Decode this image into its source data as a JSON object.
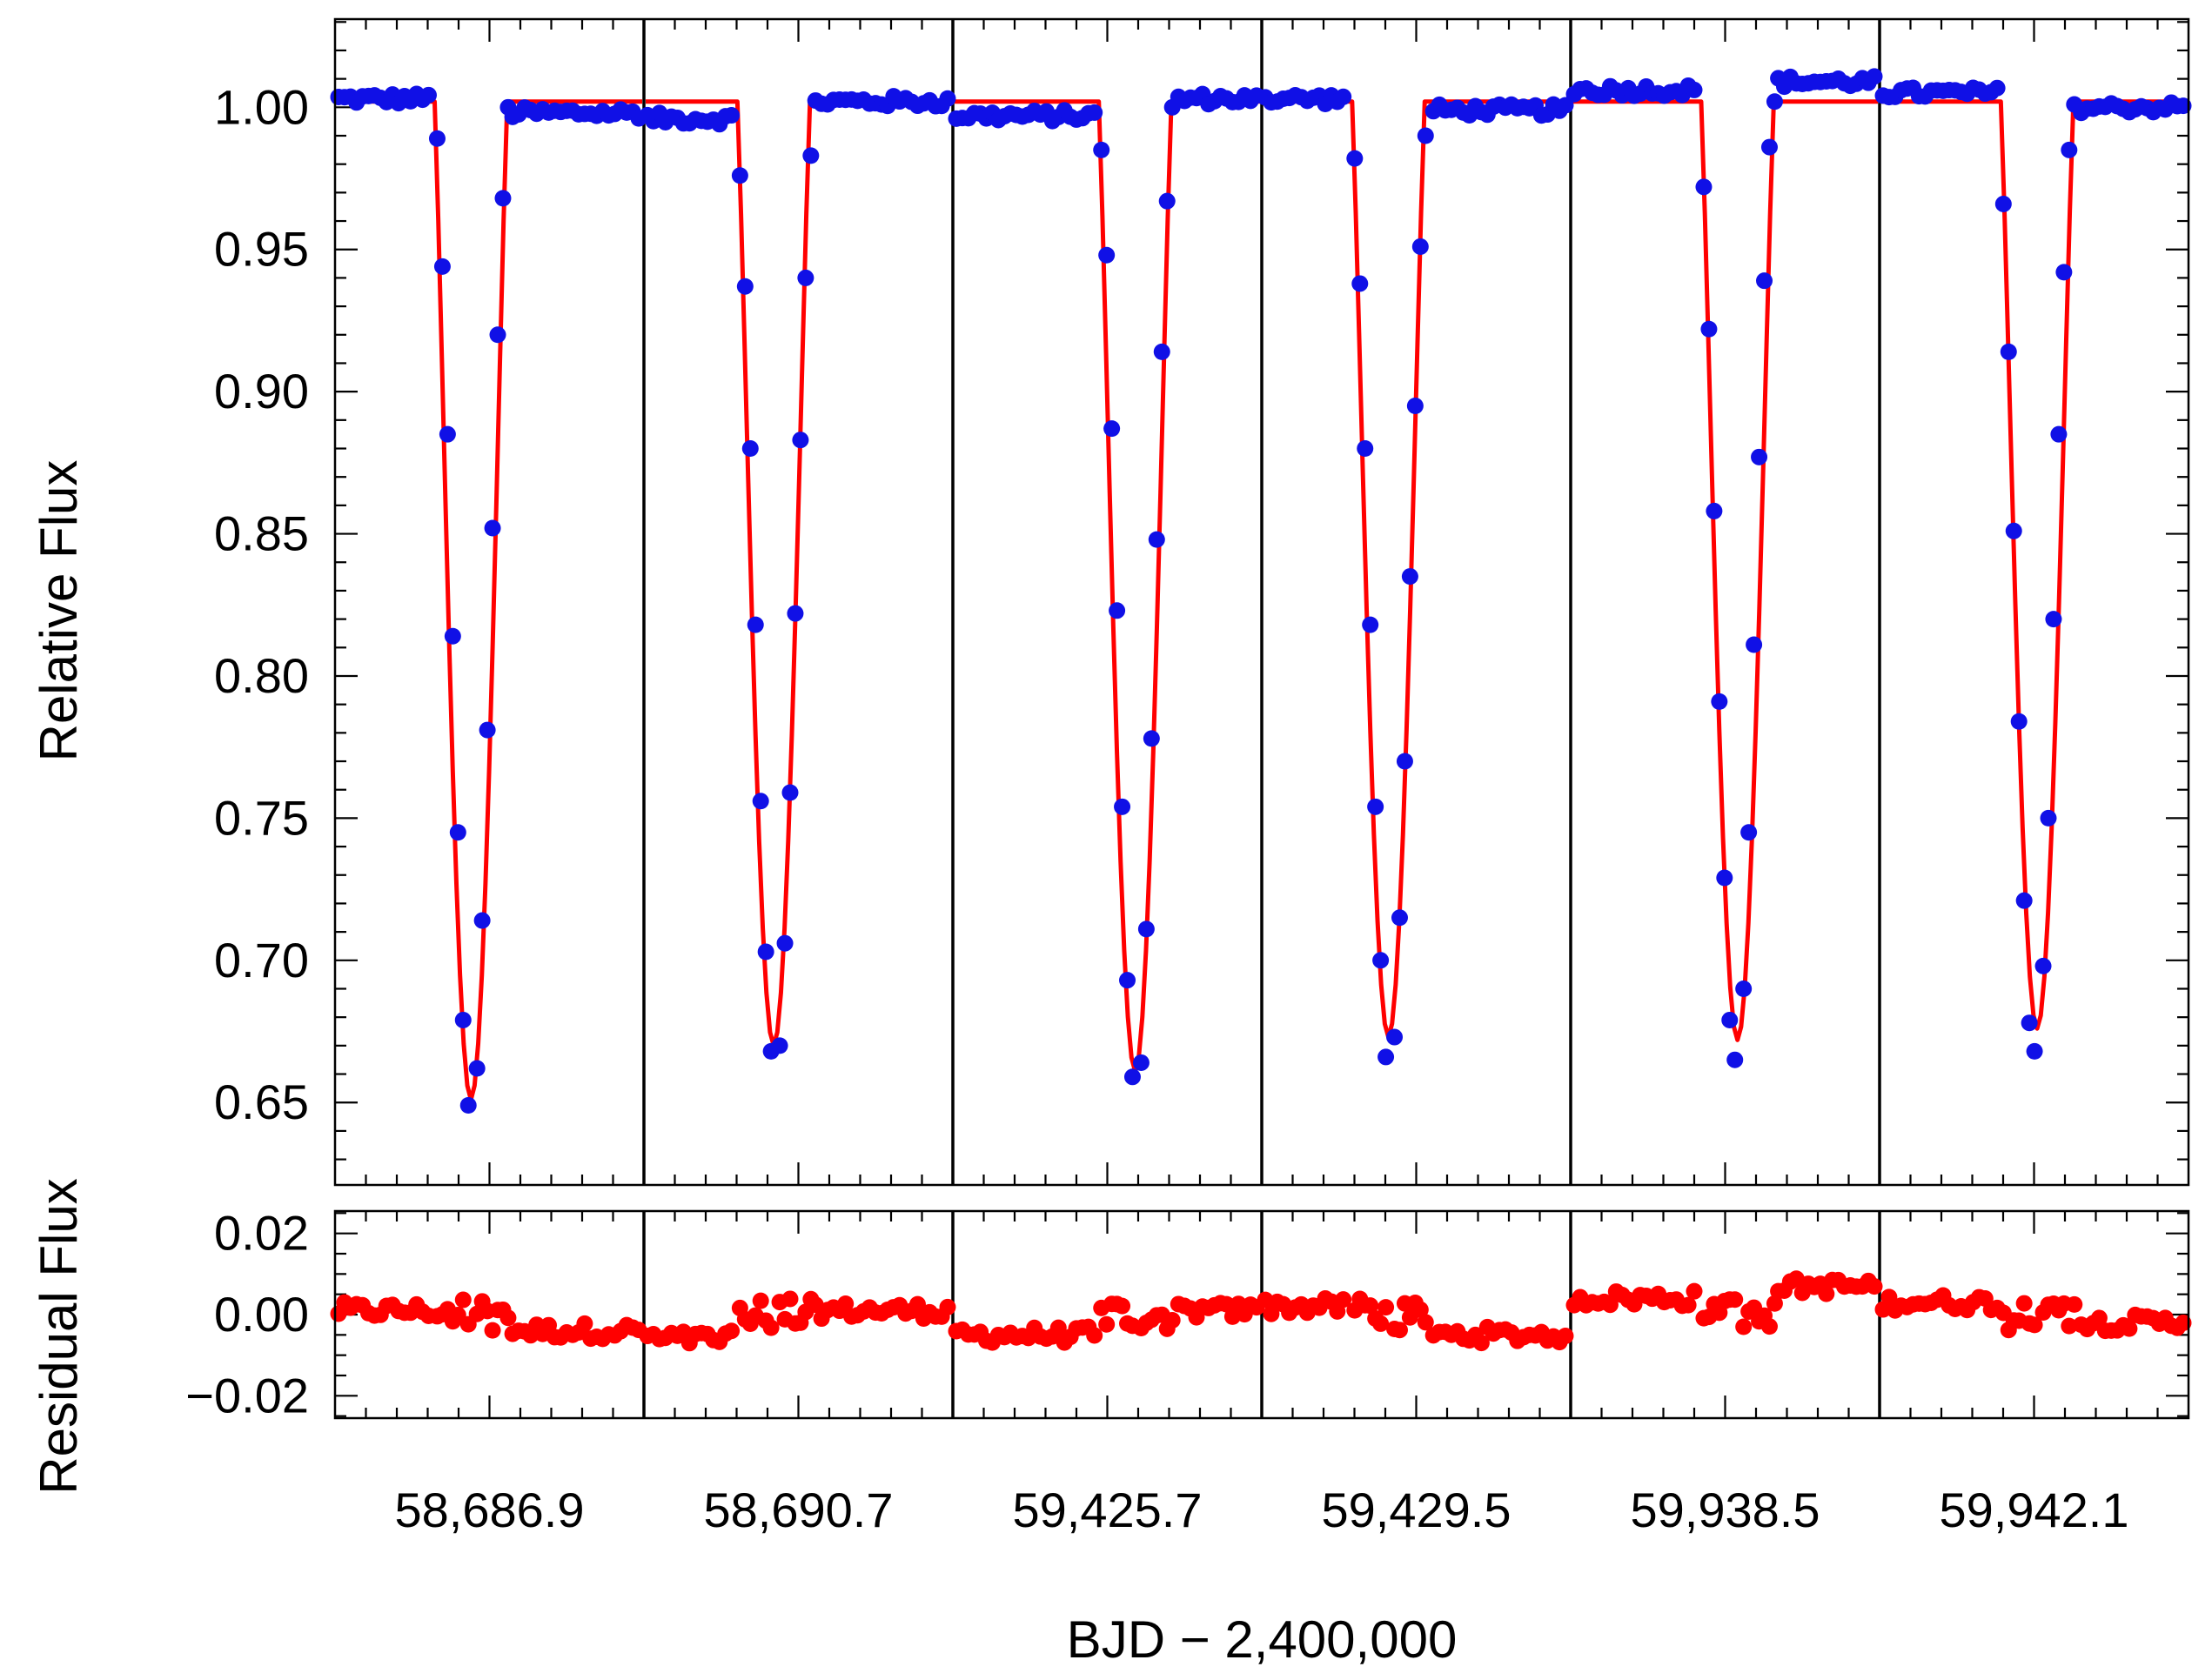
{
  "chart_data": {
    "type": "scatter",
    "xlabel": "BJD − 2,400,000",
    "x_tick_labels": [
      "58,686.9",
      "58,690.7",
      "59,425.7",
      "59,429.5",
      "59,938.5",
      "59,942.1"
    ],
    "panels": [
      {
        "name": "flux",
        "ylabel": "Relative Flux",
        "ylim": [
          0.621,
          1.031
        ],
        "y_ticks": [
          0.65,
          0.7,
          0.75,
          0.8,
          0.85,
          0.9,
          0.95,
          1.0
        ],
        "y_tick_labels": [
          "0.65",
          "0.70",
          "0.75",
          "0.80",
          "0.85",
          "0.90",
          "0.95",
          "1.00"
        ],
        "observed_color": "#1010e6",
        "model_color": "#ff0000",
        "series_type": [
          "scatter",
          "line"
        ]
      },
      {
        "name": "residual",
        "ylabel": "Residual Flux",
        "ylim": [
          -0.0255,
          0.0255
        ],
        "y_ticks": [
          -0.02,
          0.0,
          0.02
        ],
        "y_tick_labels": [
          "−0.02",
          "0.00",
          "0.02"
        ],
        "residual_color": "#ff0000"
      }
    ],
    "eclipses": [
      {
        "tick_label": "58,686.9",
        "depth_obs": 0.649,
        "depth_model": 0.651,
        "center": 0.44,
        "pre_level": 1.003,
        "post_level": 0.998,
        "model_level": 1.002,
        "ingress": [
          0.989,
          0.944,
          0.885,
          0.814,
          0.745,
          0.679,
          0.649
        ],
        "egress": [
          0.662,
          0.714,
          0.781,
          0.852,
          0.92,
          0.968,
          1.0
        ],
        "resid_pre": 0.001,
        "resid_post": -0.004
      },
      {
        "tick_label": "58,690.7",
        "depth_obs": 0.668,
        "depth_model": 0.67,
        "center": 0.42,
        "pre_level": 0.996,
        "post_level": 1.002,
        "model_level": 1.002,
        "ingress": [
          0.976,
          0.937,
          0.88,
          0.818,
          0.756,
          0.703,
          0.668
        ],
        "egress": [
          0.67,
          0.706,
          0.759,
          0.822,
          0.883,
          0.94,
          0.983
        ],
        "resid_pre": -0.006,
        "resid_post": 0.001
      },
      {
        "tick_label": "59,425.7",
        "depth_obs": 0.659,
        "depth_model": 0.661,
        "center": 0.59,
        "pre_level": 0.997,
        "post_level": 1.003,
        "model_level": 1.002,
        "ingress": [
          0.985,
          0.948,
          0.887,
          0.823,
          0.754,
          0.693,
          0.659
        ],
        "egress": [
          0.664,
          0.711,
          0.778,
          0.848,
          0.914,
          0.967,
          1.0
        ],
        "resid_pre": -0.005,
        "resid_post": 0.001
      },
      {
        "tick_label": "59,429.5",
        "depth_obs": 0.666,
        "depth_model": 0.673,
        "center": 0.41,
        "pre_level": 1.003,
        "post_level": 0.999,
        "model_level": 1.002,
        "ingress": [
          0.982,
          0.938,
          0.88,
          0.818,
          0.754,
          0.7,
          0.666
        ],
        "egress": [
          0.673,
          0.715,
          0.77,
          0.835,
          0.895,
          0.951,
          0.99
        ],
        "resid_pre": 0.002,
        "resid_post": -0.005
      },
      {
        "tick_label": "59,938.5",
        "depth_obs": 0.665,
        "depth_model": 0.672,
        "center": 0.54,
        "pre_level": 1.006,
        "post_level": 1.009,
        "model_level": 1.002,
        "ingress": [
          0.972,
          0.922,
          0.858,
          0.791,
          0.729,
          0.679,
          0.665
        ],
        "egress": [
          0.69,
          0.745,
          0.811,
          0.877,
          0.939,
          0.986,
          1.002
        ],
        "resid_pre": 0.004,
        "resid_post": 0.007
      },
      {
        "tick_label": "59,942.1",
        "depth_obs": 0.668,
        "depth_model": 0.676,
        "center": 0.51,
        "pre_level": 1.005,
        "post_level": 1.0,
        "model_level": 1.002,
        "ingress": [
          0.966,
          0.914,
          0.851,
          0.784,
          0.721,
          0.678,
          0.668
        ],
        "egress": [
          0.698,
          0.75,
          0.82,
          0.885,
          0.942,
          0.985,
          1.001
        ],
        "resid_pre": 0.003,
        "resid_post": -0.002
      }
    ]
  }
}
